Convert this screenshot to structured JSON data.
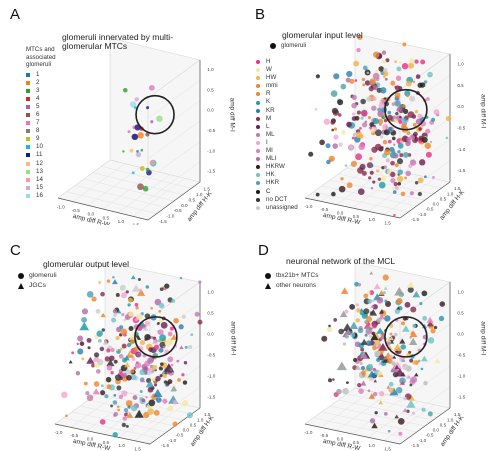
{
  "chart_data": [
    {
      "panel": "A",
      "type": "scatter",
      "title": "glomeruli innervated by multi-glomerular MTCs",
      "xlabel": "amp diff R-W",
      "ylabel": "amp diff H-K",
      "zlabel": "amp diff M-I",
      "legend_title": "MTCs and associated glomeruli",
      "legend_entries": [
        "1",
        "2",
        "3",
        "4",
        "5",
        "6",
        "7",
        "8",
        "9",
        "10",
        "11",
        "12",
        "13",
        "14",
        "15",
        "16"
      ],
      "legend_colors": [
        "#1f77b4",
        "#ff7f0e",
        "#2ca02c",
        "#d62728",
        "#9467bd",
        "#8c564b",
        "#e377c2",
        "#7f7f7f",
        "#bcbd22",
        "#17becf",
        "#1a1a8c",
        "#ffbb78",
        "#98df8a",
        "#ff9896",
        "#c5b0d5",
        "#9edae5"
      ],
      "xticks": [
        "-1.0",
        "-0.5",
        "0.0",
        "0.5",
        "1.0",
        "1.5"
      ],
      "yticks": [
        "-1.5",
        "-1.0",
        "-0.5",
        "0.0",
        "0.5",
        "1.0",
        "1.5"
      ],
      "zticks": [
        "-1.5",
        "-1.0",
        "-0.5",
        "0.0",
        "0.5",
        "1.0"
      ],
      "annotation": "circle around central cluster"
    },
    {
      "panel": "B",
      "type": "scatter",
      "title": "glomerular input level",
      "xlabel": "amp diff R-W",
      "ylabel": "amp diff H-K",
      "zlabel": "amp diff M-I",
      "marker_legend": [
        "glomeruli"
      ],
      "legend_entries": [
        "H",
        "W",
        "HW",
        "mmi",
        "R",
        "K",
        "KR",
        "M",
        "L",
        "ML",
        "I",
        "MI",
        "MLI",
        "HKRW",
        "HK",
        "HKR",
        "C",
        "no DCT",
        "unassigned"
      ],
      "legend_colors": [
        "#e8308a",
        "#f5e8a0",
        "#f2b347",
        "#e88a2e",
        "#f0842c",
        "#1f9ba8",
        "#2a7fb0",
        "#8a2a4e",
        "#6a2050",
        "#c07ab0",
        "#f2a6d0",
        "#e07bc0",
        "#b06aa8",
        "#3a1a1a",
        "#6dc3c8",
        "#4aa0b0",
        "#1a1a1a",
        "#333333",
        "#cccccc"
      ],
      "xticks": [
        "-1.0",
        "-0.5",
        "0.0",
        "0.5",
        "1.0",
        "1.5"
      ],
      "yticks": [
        "-1.5",
        "-1.0",
        "-0.5",
        "0.0",
        "0.5",
        "1.0",
        "1.5"
      ],
      "zticks": [
        "-1.5",
        "-1.0",
        "-0.5",
        "0.0",
        "0.5",
        "1.0"
      ]
    },
    {
      "panel": "C",
      "type": "scatter",
      "title": "glomerular output level",
      "xlabel": "amp diff R-W",
      "ylabel": "amp diff H-K",
      "zlabel": "amp diff M-I",
      "marker_legend": [
        "glomeruli",
        "JGCs"
      ],
      "xticks": [
        "-1.0",
        "-0.5",
        "0.0",
        "0.5",
        "1.0",
        "1.5"
      ],
      "yticks": [
        "-1.5",
        "-1.0",
        "-0.5",
        "0.0",
        "0.5",
        "1.0",
        "1.5"
      ],
      "zticks": [
        "-1.5",
        "-1.0",
        "-0.5",
        "0.0",
        "0.5",
        "1.0"
      ]
    },
    {
      "panel": "D",
      "type": "scatter",
      "title": "neuronal network of the MCL",
      "xlabel": "amp diff R-W",
      "ylabel": "amp diff H-K",
      "zlabel": "amp diff M-I",
      "marker_legend": [
        "tbx21b+ MTCs",
        "other neurons"
      ],
      "xticks": [
        "-1.0",
        "-0.5",
        "0.0",
        "0.5",
        "1.0",
        "1.5"
      ],
      "yticks": [
        "-1.5",
        "-1.0",
        "-0.5",
        "0.0",
        "0.5",
        "1.0",
        "1.5"
      ],
      "zticks": [
        "-1.5",
        "-1.0",
        "-0.5",
        "0.0",
        "0.5",
        "1.0"
      ]
    }
  ],
  "panels": {
    "A": {
      "label": "A"
    },
    "B": {
      "label": "B"
    },
    "C": {
      "label": "C"
    },
    "D": {
      "label": "D"
    }
  }
}
